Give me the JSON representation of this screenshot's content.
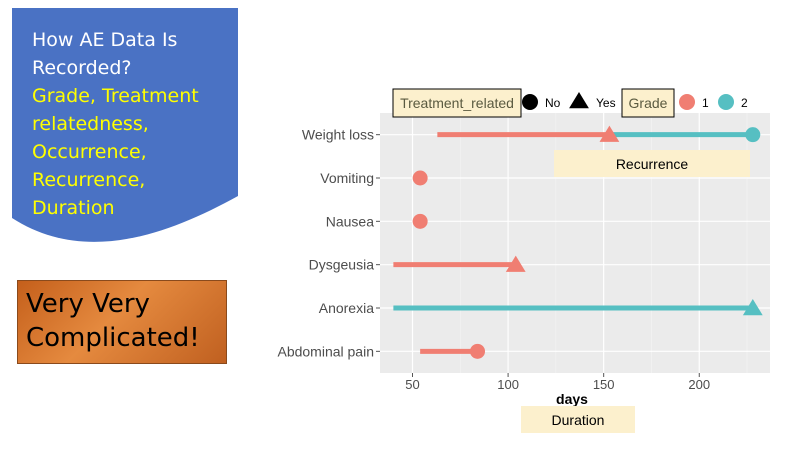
{
  "slide": {
    "heading_lines": [
      "How AE Data Is",
      "Recorded?"
    ],
    "highlight_lines": [
      "Grade, Treatment",
      "relatedness,",
      "Occurrence,",
      "Recurrence,",
      "Duration"
    ],
    "callout_lines": [
      "Very Very",
      "Complicated!"
    ],
    "colors": {
      "banner": "#4a72c4",
      "highlight": "#ffff00",
      "callout": "#d9772f",
      "note_box": "#fcf0cd"
    }
  },
  "annotations": {
    "recurrence": "Recurrence",
    "duration": "Duration"
  },
  "chart_data": {
    "type": "line",
    "title": "",
    "xlabel": "days",
    "ylabel": "",
    "xlim": [
      33,
      237
    ],
    "xticks": [
      50,
      100,
      150,
      200
    ],
    "categories": [
      "Weight loss",
      "Vomiting",
      "Nausea",
      "Dysgeusia",
      "Anorexia",
      "Abdominal pain"
    ],
    "grid": true,
    "legend": {
      "position": "top",
      "groups": [
        {
          "title": "Treatment_related",
          "entries": [
            {
              "label": "No",
              "shape": "circle"
            },
            {
              "label": "Yes",
              "shape": "triangle"
            }
          ]
        },
        {
          "title": "Grade",
          "entries": [
            {
              "label": "1",
              "color": "#f07e72"
            },
            {
              "label": "2",
              "color": "#56bfc2"
            }
          ]
        }
      ]
    },
    "series": [
      {
        "name": "1",
        "color": "#f07e72",
        "segments": [
          {
            "category": "Weight loss",
            "start": 63,
            "end": 153,
            "treatment_related": "Yes"
          },
          {
            "category": "Vomiting",
            "start": 54,
            "end": 54,
            "treatment_related": "No"
          },
          {
            "category": "Nausea",
            "start": 54,
            "end": 54,
            "treatment_related": "No"
          },
          {
            "category": "Dysgeusia",
            "start": 40,
            "end": 104,
            "treatment_related": "Yes"
          },
          {
            "category": "Abdominal pain",
            "start": 54,
            "end": 84,
            "treatment_related": "No"
          }
        ]
      },
      {
        "name": "2",
        "color": "#56bfc2",
        "segments": [
          {
            "category": "Weight loss",
            "start": 153,
            "end": 228,
            "treatment_related": "No"
          },
          {
            "category": "Anorexia",
            "start": 40,
            "end": 228,
            "treatment_related": "Yes"
          }
        ]
      }
    ]
  }
}
